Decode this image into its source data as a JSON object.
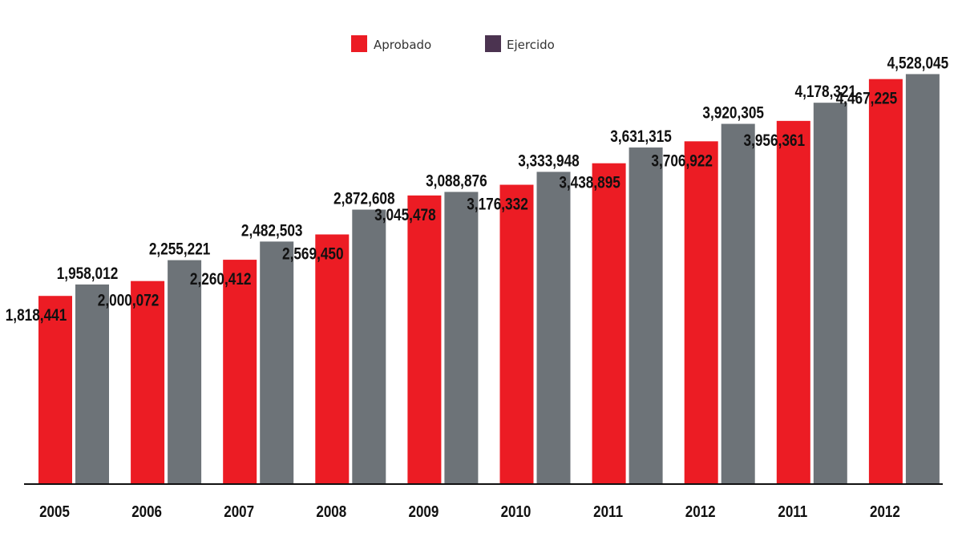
{
  "chart_data": {
    "type": "bar",
    "title": "",
    "xlabel": "",
    "ylabel": "",
    "categories": [
      "2005",
      "2006",
      "2007",
      "2008",
      "2009",
      "2010",
      "2011",
      "2012",
      "2011",
      "2012"
    ],
    "series": [
      {
        "name": "Aprobado",
        "color": "#ec1c24",
        "values": [
          1818441,
          2000072,
          2260412,
          2569450,
          3045478,
          3176332,
          3438895,
          3706922,
          3956361,
          4467225
        ],
        "labels": [
          "1,818,441",
          "2,000,072",
          "2,260,412",
          "2,569,450",
          "3,045,478",
          "3,176,332",
          "3,438,895",
          "3,706,922",
          "3,956,361",
          "4,467,225"
        ]
      },
      {
        "name": "Ejercido",
        "color": "#6d7378",
        "legend_color": "#4b3350",
        "values": [
          1958012,
          2255221,
          2482503,
          2872608,
          3088876,
          3333948,
          3631315,
          3920305,
          4178321,
          4528045
        ],
        "labels": [
          "1,958,012",
          "2,255,221",
          "2,482,503",
          "2,872,608",
          "3,088,876",
          "3,333,948",
          "3,631,315",
          "3,920,305",
          "4,178,321",
          "4,528,045"
        ]
      }
    ],
    "ylim": [
      -480000,
      4650000
    ],
    "grid": false,
    "legend_position": "top-center"
  }
}
